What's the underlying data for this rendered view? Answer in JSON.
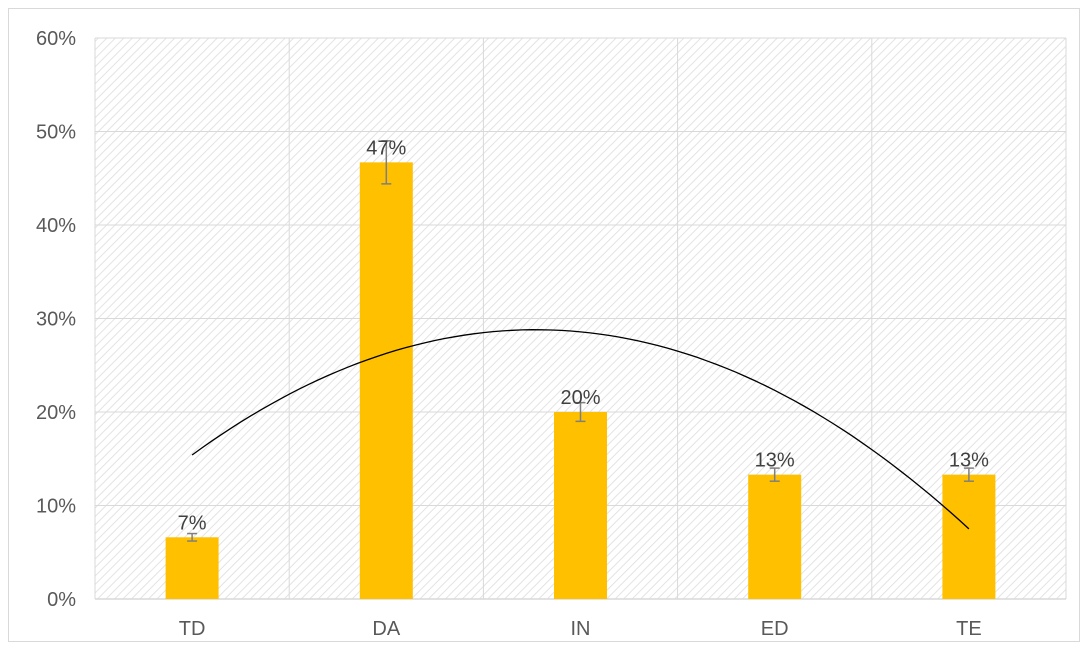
{
  "chart_data": {
    "type": "bar",
    "categories": [
      "TD",
      "DA",
      "IN",
      "ED",
      "TE"
    ],
    "values": [
      6.6,
      46.7,
      20.0,
      13.3,
      13.3
    ],
    "error": [
      0.4,
      2.3,
      1.0,
      0.7,
      0.7
    ],
    "data_labels": [
      "7%",
      "47%",
      "20%",
      "13%",
      "13%"
    ],
    "ylim": [
      0,
      60
    ],
    "yticks": [
      0,
      10,
      20,
      30,
      40,
      50,
      60
    ],
    "ytick_labels": [
      "0%",
      "10%",
      "20%",
      "30%",
      "40%",
      "50%",
      "60%"
    ],
    "trendline": {
      "type": "polynomial",
      "order": 2,
      "start": 15.4,
      "end": 7.5
    },
    "bar_color": "#FFC000",
    "trend_color": "#000000",
    "grid": true,
    "title": "",
    "xlabel": "",
    "ylabel": ""
  }
}
